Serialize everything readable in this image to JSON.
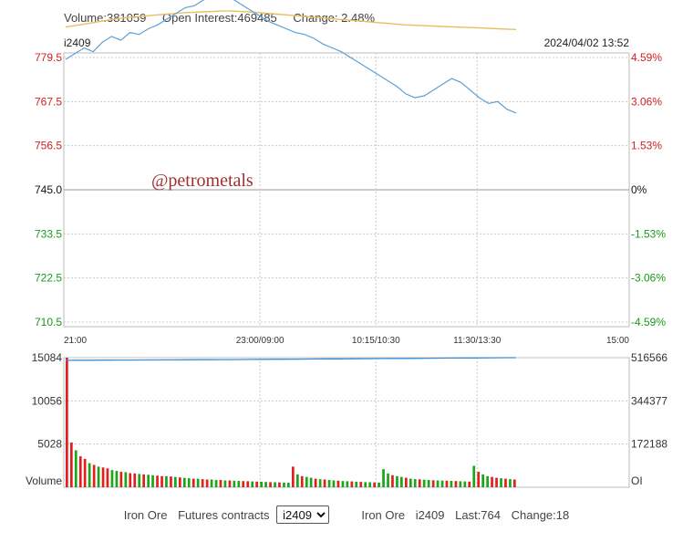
{
  "header": {
    "volume": "Volume:381059",
    "open_interest": "Open Interest:469485",
    "change": "Change: 2.48%",
    "code": "i2409",
    "datetime": "2024/04/02 13:52"
  },
  "watermark": "@petrometals",
  "colors": {
    "up": "#e02020",
    "down": "#1aa51a",
    "price_line": "#5aa0d8",
    "avg_line": "#e8c060",
    "oi_line": "#3b8ed8",
    "grid": "#c8c8c8"
  },
  "chart_data": [
    {
      "type": "line",
      "series": [
        {
          "values": [
            779.0,
            780.5,
            782.0,
            781.0,
            783.5,
            785.0,
            784.0,
            786.0,
            785.5,
            787.0,
            788.0,
            789.5,
            791.0,
            792.5,
            793.0,
            794.5,
            795.5,
            796.5,
            795.0,
            793.5,
            792.0,
            790.5,
            789.0,
            788.0,
            787.0,
            786.0,
            785.5,
            784.5,
            783.0,
            782.0,
            781.0,
            779.5,
            778.0,
            776.5,
            775.0,
            773.5,
            772.0,
            770.0,
            769.0,
            769.5,
            771.0,
            772.5,
            774.0,
            773.0,
            771.0,
            769.0,
            767.5,
            768.0,
            766.0,
            765.0
          ]
        },
        {
          "values": [
            787.5,
            787.8,
            788.2,
            788.6,
            789.0,
            789.4,
            789.7,
            790.0,
            790.2,
            790.4,
            790.6,
            790.8,
            791.0,
            791.2,
            791.3,
            791.4,
            791.5,
            791.6,
            791.6,
            791.5,
            791.4,
            791.2,
            791.0,
            790.8,
            790.6,
            790.4,
            790.2,
            790.0,
            789.8,
            789.6,
            789.4,
            789.2,
            789.0,
            788.8,
            788.6,
            788.4,
            788.2,
            788.0,
            787.9,
            787.8,
            787.7,
            787.6,
            787.5,
            787.4,
            787.3,
            787.2,
            787.1,
            787.0,
            786.9,
            786.8
          ]
        }
      ],
      "x_ticks": [
        "21:00",
        "23:00/09:00",
        "10:15/10:30",
        "11:30/13:30",
        "15:00"
      ],
      "y_ticks_left": [
        "779.5",
        "767.5",
        "756.5",
        "745.0",
        "733.5",
        "722.5",
        "710.5"
      ],
      "y_ticks_right": [
        "4.59%",
        "3.06%",
        "1.53%",
        "0%",
        "-1.53%",
        "-3.06%",
        "-4.59%"
      ],
      "ylim": [
        710.5,
        779.5
      ],
      "grid": true
    },
    {
      "type": "bar",
      "values": [
        15084,
        5200,
        4300,
        3600,
        3300,
        2800,
        2600,
        2400,
        2300,
        2200,
        2000,
        1900,
        1800,
        1750,
        1650,
        1600,
        1550,
        1500,
        1450,
        1400,
        1350,
        1300,
        1300,
        1250,
        1200,
        1150,
        1100,
        1050,
        1000,
        1000,
        950,
        900,
        900,
        850,
        850,
        800,
        800,
        760,
        740,
        720,
        700,
        680,
        660,
        640,
        620,
        600,
        580,
        560,
        540,
        520,
        2400,
        1500,
        1300,
        1200,
        1100,
        1000,
        950,
        900,
        850,
        800,
        760,
        720,
        700,
        680,
        650,
        630,
        600,
        580,
        560,
        540,
        2100,
        1600,
        1400,
        1300,
        1200,
        1100,
        1000,
        960,
        920,
        880,
        850,
        820,
        800,
        780,
        760,
        740,
        720,
        700,
        680,
        660,
        2500,
        1800,
        1500,
        1300,
        1200,
        1100,
        1050,
        1000,
        950,
        900
      ],
      "up_flags": [
        true,
        true,
        false,
        true,
        true,
        false,
        true,
        false,
        true,
        true,
        false,
        false,
        true,
        false,
        true,
        true,
        false,
        true,
        false,
        false,
        true,
        true,
        false,
        true,
        false,
        true,
        false,
        false,
        true,
        false,
        true,
        true,
        false,
        false,
        true,
        false,
        true,
        false,
        false,
        true,
        true,
        false,
        true,
        false,
        false,
        true,
        false,
        true,
        false,
        false,
        true,
        false,
        true,
        false,
        false,
        true,
        false,
        true,
        false,
        false,
        true,
        false,
        false,
        true,
        false,
        true,
        false,
        false,
        true,
        false,
        false,
        false,
        true,
        false,
        false,
        true,
        false,
        false,
        true,
        false,
        false,
        true,
        false,
        false,
        true,
        false,
        true,
        false,
        false,
        true,
        false,
        true,
        false,
        false,
        true,
        true,
        false,
        true,
        false,
        true
      ],
      "open_interest": [
        506000,
        506200,
        506400,
        506600,
        506800,
        507000,
        507200,
        507400,
        507600,
        507800,
        508000,
        508200,
        508400,
        508600,
        508800,
        509000,
        509300,
        509600,
        509900,
        510200,
        510500,
        510800,
        511100,
        511400,
        511700,
        512000,
        512300,
        512600,
        512900,
        513200,
        513500,
        513800,
        514100,
        514400,
        514700,
        515000,
        515300,
        515600,
        515900,
        516200,
        516400,
        516600
      ],
      "y_ticks_left": [
        "15084",
        "10056",
        "5028"
      ],
      "y_ticks_right": [
        "516566",
        "344377",
        "172188"
      ],
      "ylim": [
        0,
        15084
      ],
      "oi_lim": [
        0,
        516566
      ],
      "ylabel_left": "Volume",
      "ylabel_right": "OI",
      "grid": true
    }
  ],
  "footer": {
    "product_label": "Iron Ore",
    "futures_label": "Futures contracts",
    "contract_options": [
      "i2409"
    ],
    "selected_contract": "i2409",
    "product_name": "Iron Ore",
    "contract_code": "i2409",
    "last": "Last:764",
    "change": "Change:18"
  }
}
